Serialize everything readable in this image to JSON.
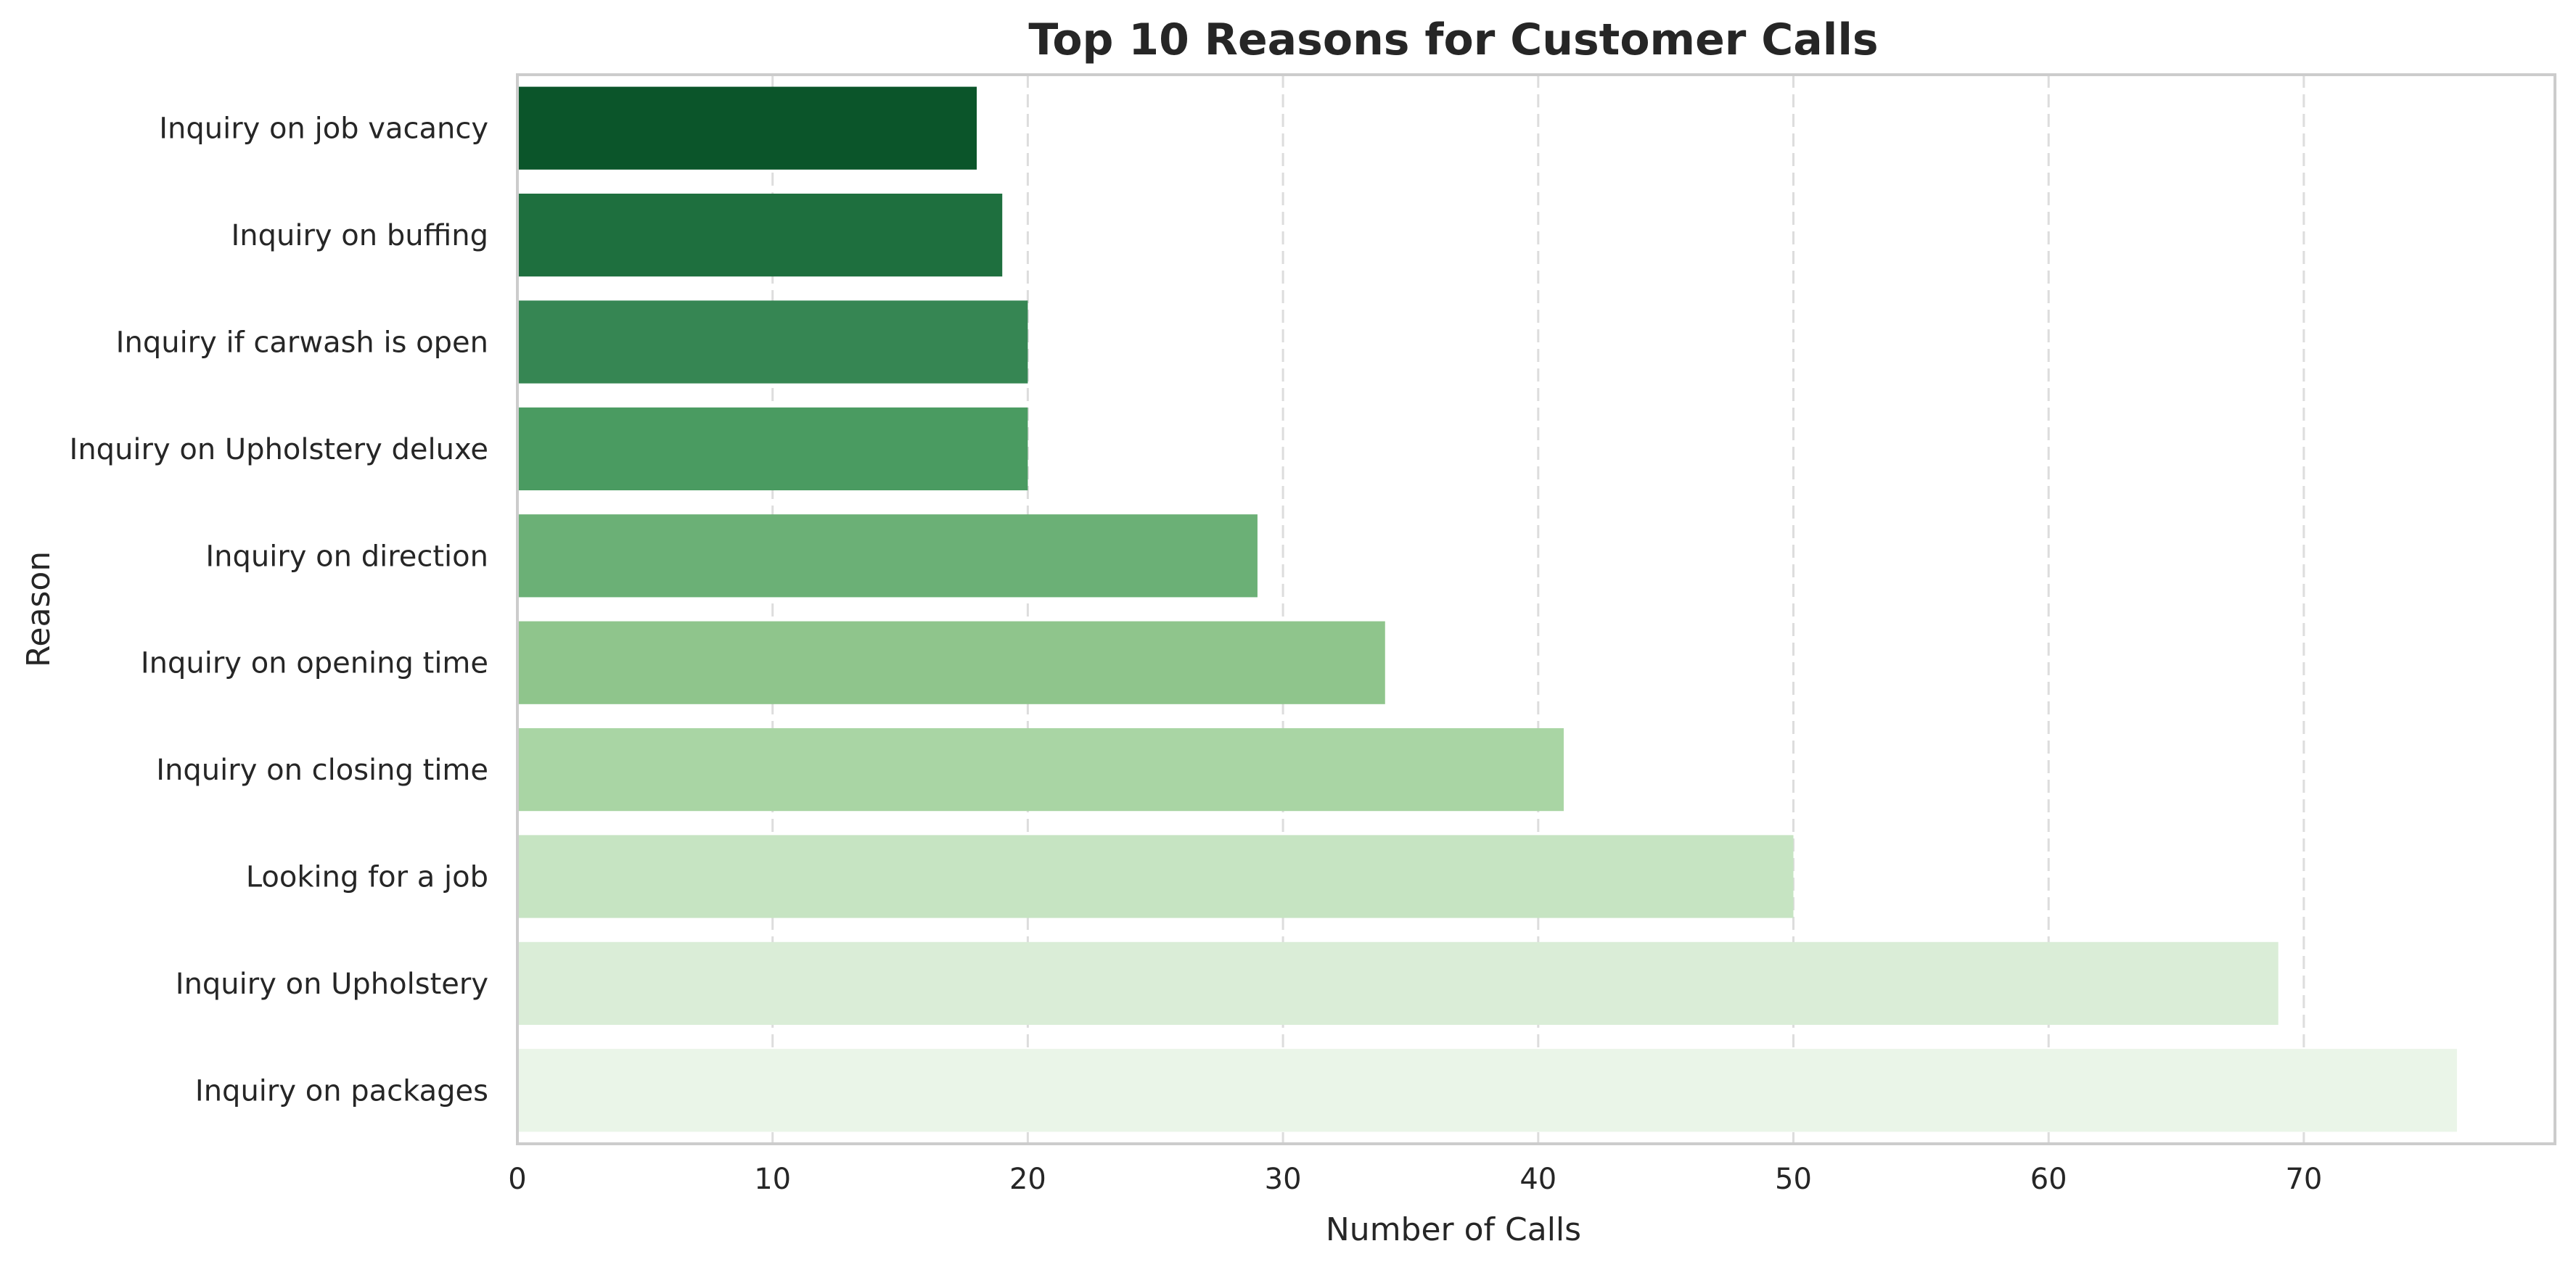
{
  "chart_data": {
    "type": "bar",
    "orientation": "horizontal",
    "title": "Top 10 Reasons for Customer Calls",
    "xlabel": "Number of Calls",
    "ylabel": "Reason",
    "categories": [
      "Inquiry on job vacancy",
      "Inquiry on buffing",
      "Inquiry if carwash is open",
      "Inquiry on Upholstery deluxe",
      "Inquiry on direction",
      "Inquiry on opening time",
      "Inquiry on closing time",
      "Looking for a job",
      "Inquiry on Upholstery",
      "Inquiry on packages"
    ],
    "values": [
      18,
      19,
      20,
      20,
      29,
      34,
      41,
      50,
      69,
      76
    ],
    "colors": [
      "#0b552a",
      "#1e6f3e",
      "#368653",
      "#4a9b61",
      "#6bb076",
      "#8fc58c",
      "#a9d5a4",
      "#c6e4c2",
      "#daedd7",
      "#eaf5e8"
    ],
    "xlim": [
      0,
      80
    ],
    "xticks": [
      0,
      10,
      20,
      30,
      40,
      50,
      60,
      70
    ],
    "grid": "x-dashed",
    "legend": "none"
  }
}
